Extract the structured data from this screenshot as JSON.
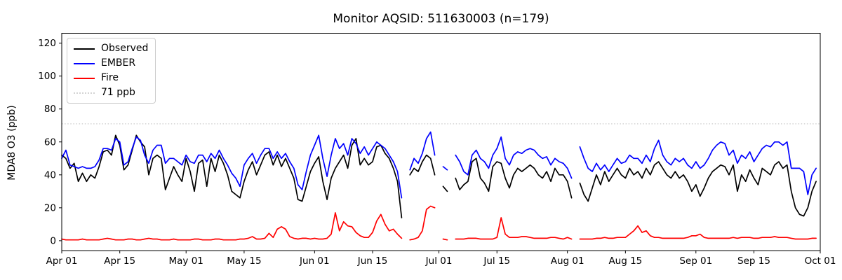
{
  "window": {
    "title": "Monitor AQSID: 511630003 (n=179)"
  },
  "chart_data": {
    "type": "line",
    "title": "Monitor AQSID: 511630003 (n=179)",
    "monitor_aqsid": "511630003",
    "n_points": 179,
    "xlabel": "",
    "ylabel": "MDA8 O3 (ppb)",
    "ylim": [
      -6,
      126
    ],
    "yticks": [
      0,
      20,
      40,
      60,
      80,
      100,
      120
    ],
    "x_tick_labels": [
      "Apr 01",
      "Apr 15",
      "May 01",
      "May 15",
      "Jun 01",
      "Jun 15",
      "Jul 01",
      "Jul 15",
      "Aug 01",
      "Aug 15",
      "Sep 01",
      "Sep 15",
      "Oct 01"
    ],
    "x_tick_day_index": [
      0,
      14,
      30,
      44,
      61,
      75,
      91,
      105,
      122,
      136,
      153,
      167,
      183
    ],
    "total_days": 183,
    "date_range": {
      "start": "Apr 01",
      "end": "Oct 01"
    },
    "grid": false,
    "legend_position": "upper left",
    "reference_line": {
      "label": "71 ppb",
      "value": 71,
      "color": "#d3d3d3",
      "style": "dotted"
    },
    "series": [
      {
        "name": "Observed",
        "color": "#000000",
        "values": [
          52,
          50,
          44,
          47,
          36,
          41,
          36,
          40,
          38,
          45,
          54,
          55,
          52,
          64,
          58,
          43,
          46,
          55,
          64,
          60,
          57,
          40,
          50,
          52,
          50,
          31,
          38,
          45,
          40,
          36,
          50,
          42,
          30,
          47,
          49,
          33,
          50,
          42,
          52,
          47,
          40,
          30,
          28,
          26,
          36,
          43,
          48,
          40,
          46,
          52,
          54,
          46,
          52,
          45,
          50,
          44,
          38,
          25,
          24,
          33,
          42,
          47,
          51,
          36,
          25,
          38,
          44,
          48,
          52,
          44,
          58,
          62,
          46,
          50,
          46,
          48,
          57,
          58,
          53,
          50,
          44,
          36,
          14,
          null,
          40,
          44,
          42,
          48,
          52,
          50,
          40,
          null,
          33,
          30,
          null,
          38,
          31,
          34,
          36,
          48,
          50,
          38,
          35,
          30,
          45,
          48,
          47,
          38,
          32,
          40,
          44,
          42,
          44,
          46,
          44,
          40,
          38,
          42,
          36,
          44,
          40,
          40,
          36,
          26,
          null,
          35,
          28,
          24,
          32,
          40,
          34,
          42,
          36,
          40,
          44,
          40,
          38,
          44,
          40,
          42,
          38,
          44,
          40,
          46,
          48,
          44,
          40,
          38,
          42,
          38,
          40,
          36,
          30,
          34,
          27,
          32,
          38,
          42,
          44,
          46,
          45,
          40,
          46,
          30,
          40,
          36,
          43,
          38,
          34,
          44,
          42,
          40,
          46,
          48,
          44,
          46,
          30,
          20,
          16,
          15,
          20,
          30,
          36
        ]
      },
      {
        "name": "EMBER",
        "color": "#0000ff",
        "values": [
          50,
          55,
          46,
          45,
          44,
          45,
          44,
          44,
          45,
          49,
          56,
          56,
          55,
          62,
          60,
          46,
          48,
          56,
          63,
          61,
          52,
          47,
          55,
          58,
          58,
          47,
          50,
          50,
          48,
          46,
          52,
          48,
          47,
          52,
          52,
          48,
          53,
          50,
          55,
          50,
          46,
          41,
          38,
          33,
          46,
          50,
          53,
          47,
          52,
          56,
          56,
          50,
          54,
          50,
          53,
          48,
          44,
          34,
          31,
          42,
          52,
          58,
          64,
          50,
          39,
          52,
          62,
          56,
          59,
          52,
          62,
          59,
          53,
          57,
          52,
          56,
          60,
          58,
          56,
          52,
          48,
          42,
          26,
          null,
          43,
          50,
          47,
          53,
          62,
          66,
          52,
          null,
          45,
          43,
          null,
          52,
          48,
          42,
          40,
          52,
          55,
          50,
          48,
          44,
          52,
          56,
          63,
          50,
          46,
          52,
          54,
          53,
          55,
          56,
          55,
          52,
          50,
          51,
          46,
          50,
          48,
          47,
          44,
          38,
          null,
          57,
          50,
          44,
          42,
          47,
          43,
          46,
          42,
          46,
          50,
          47,
          48,
          52,
          50,
          50,
          47,
          52,
          48,
          56,
          61,
          52,
          48,
          46,
          50,
          48,
          50,
          46,
          44,
          48,
          44,
          46,
          50,
          55,
          58,
          60,
          59,
          52,
          55,
          47,
          52,
          50,
          54,
          48,
          52,
          56,
          58,
          57,
          60,
          60,
          58,
          60,
          44,
          44,
          44,
          42,
          28,
          40,
          44
        ]
      },
      {
        "name": "Fire",
        "color": "#ff0000",
        "values": [
          1,
          0.5,
          0.5,
          0.5,
          0.5,
          1,
          0.5,
          0.5,
          0.5,
          0.5,
          1,
          1.5,
          1,
          0.5,
          0.5,
          0.5,
          1,
          1,
          0.5,
          0.5,
          1,
          1.5,
          1,
          1,
          0.5,
          0.5,
          0.5,
          1,
          0.5,
          0.5,
          0.5,
          0.5,
          1,
          1,
          0.5,
          0.5,
          0.5,
          1,
          1,
          0.5,
          0.5,
          0.5,
          0.5,
          1,
          1,
          1.5,
          2.5,
          1,
          1,
          1.5,
          4.5,
          2,
          7,
          8.5,
          7,
          2.5,
          1.5,
          1,
          1.5,
          1.5,
          1,
          1.5,
          1,
          1,
          1.5,
          4,
          17,
          6,
          11.5,
          9,
          8.5,
          5,
          3,
          2,
          2,
          5,
          12,
          16,
          10,
          6,
          7,
          4,
          1.5,
          null,
          0.5,
          1,
          2,
          6,
          19,
          21,
          20,
          null,
          1,
          0.5,
          null,
          1,
          1,
          1,
          1.5,
          1.5,
          1.5,
          1,
          1,
          1,
          1,
          2,
          14,
          4,
          2,
          2,
          2,
          2.5,
          2.5,
          2,
          1.5,
          1.5,
          1.5,
          1.5,
          2,
          2,
          1.5,
          1,
          2,
          1,
          null,
          1,
          1,
          1,
          1,
          1.5,
          1.5,
          2,
          1.5,
          1.5,
          2,
          2,
          2,
          4,
          6,
          9,
          5,
          6,
          3,
          2,
          2,
          1.5,
          1.5,
          1.5,
          1.5,
          1.5,
          1.5,
          2,
          3,
          3,
          4,
          2,
          1.5,
          1.5,
          1.5,
          1.5,
          1.5,
          1.5,
          2,
          1.5,
          2,
          2,
          2,
          1.5,
          1.5,
          2,
          2,
          2,
          2.5,
          2,
          2,
          2,
          1.5,
          1,
          1,
          1,
          1,
          1.5,
          1.5
        ]
      }
    ]
  }
}
